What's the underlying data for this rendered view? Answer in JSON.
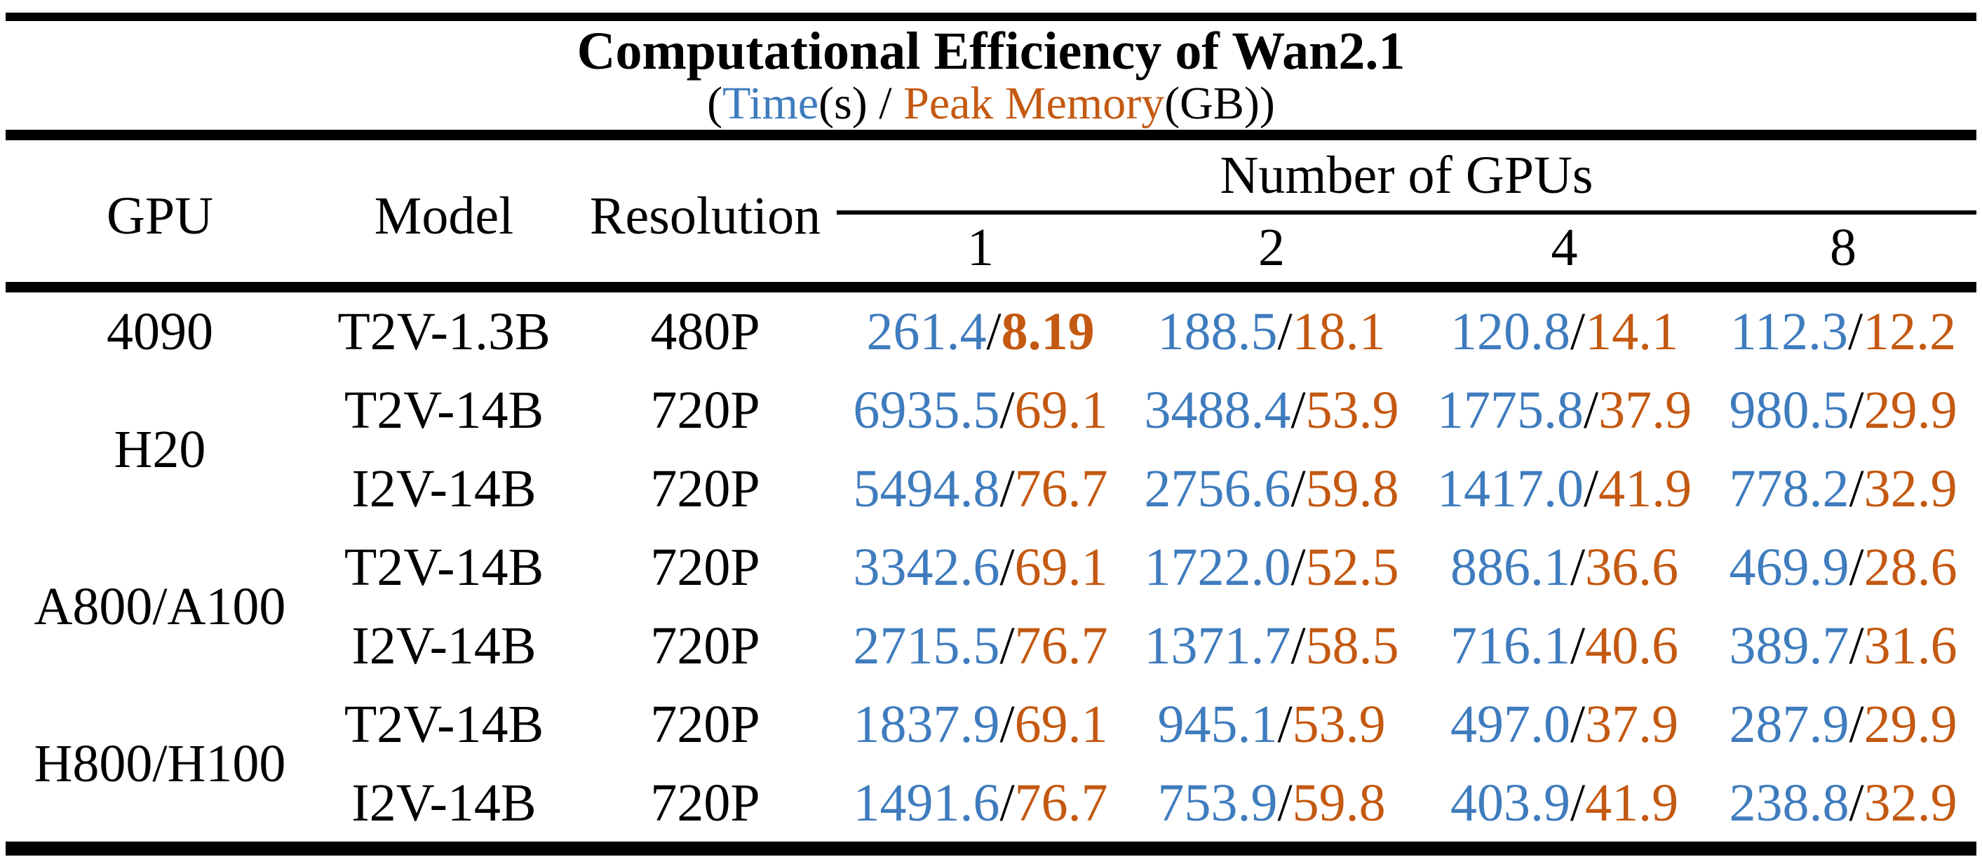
{
  "colors": {
    "time": "#3F7CBE",
    "memory": "#C45911",
    "text": "#000000",
    "rule": "#000000",
    "background": "#FFFFFF"
  },
  "chart_data": {
    "type": "table",
    "title": "Computational Efficiency of Wan2.1",
    "subtitle": {
      "open": "(",
      "time_label": "Time",
      "time_unit_and_sep": "(s) / ",
      "memory_label": "Peak Memory",
      "memory_unit_close": "(GB))"
    },
    "header": {
      "gpu": "GPU",
      "model": "Model",
      "resolution": "Resolution",
      "gpu_count_group": "Number of GPUs",
      "gpu_counts": [
        "1",
        "2",
        "4",
        "8"
      ]
    },
    "value_separator": "/",
    "value_format": "Time(s)/Peak Memory(GB)",
    "groups": [
      {
        "gpu": "4090",
        "rows": [
          {
            "model": "T2V-1.3B",
            "resolution": "480P",
            "values": [
              {
                "time": "261.4",
                "memory": "8.19",
                "memory_bold": true
              },
              {
                "time": "188.5",
                "memory": "18.1"
              },
              {
                "time": "120.8",
                "memory": "14.1"
              },
              {
                "time": "112.3",
                "memory": "12.2"
              }
            ]
          }
        ]
      },
      {
        "gpu": "H20",
        "rows": [
          {
            "model": "T2V-14B",
            "resolution": "720P",
            "values": [
              {
                "time": "6935.5",
                "memory": "69.1"
              },
              {
                "time": "3488.4",
                "memory": "53.9"
              },
              {
                "time": "1775.8",
                "memory": "37.9"
              },
              {
                "time": "980.5",
                "memory": "29.9"
              }
            ]
          },
          {
            "model": "I2V-14B",
            "resolution": "720P",
            "values": [
              {
                "time": "5494.8",
                "memory": "76.7"
              },
              {
                "time": "2756.6",
                "memory": "59.8"
              },
              {
                "time": "1417.0",
                "memory": "41.9"
              },
              {
                "time": "778.2",
                "memory": "32.9"
              }
            ]
          }
        ]
      },
      {
        "gpu": "A800/A100",
        "rows": [
          {
            "model": "T2V-14B",
            "resolution": "720P",
            "values": [
              {
                "time": "3342.6",
                "memory": "69.1"
              },
              {
                "time": "1722.0",
                "memory": "52.5"
              },
              {
                "time": "886.1",
                "memory": "36.6"
              },
              {
                "time": "469.9",
                "memory": "28.6"
              }
            ]
          },
          {
            "model": "I2V-14B",
            "resolution": "720P",
            "values": [
              {
                "time": "2715.5",
                "memory": "76.7"
              },
              {
                "time": "1371.7",
                "memory": "58.5"
              },
              {
                "time": "716.1",
                "memory": "40.6"
              },
              {
                "time": "389.7",
                "memory": "31.6"
              }
            ]
          }
        ]
      },
      {
        "gpu": "H800/H100",
        "rows": [
          {
            "model": "T2V-14B",
            "resolution": "720P",
            "values": [
              {
                "time": "1837.9",
                "memory": "69.1"
              },
              {
                "time": "945.1",
                "memory": "53.9"
              },
              {
                "time": "497.0",
                "memory": "37.9"
              },
              {
                "time": "287.9",
                "memory": "29.9"
              }
            ]
          },
          {
            "model": "I2V-14B",
            "resolution": "720P",
            "values": [
              {
                "time": "1491.6",
                "memory": "76.7"
              },
              {
                "time": "753.9",
                "memory": "59.8"
              },
              {
                "time": "403.9",
                "memory": "41.9"
              },
              {
                "time": "238.8",
                "memory": "32.9"
              }
            ]
          }
        ]
      }
    ]
  }
}
